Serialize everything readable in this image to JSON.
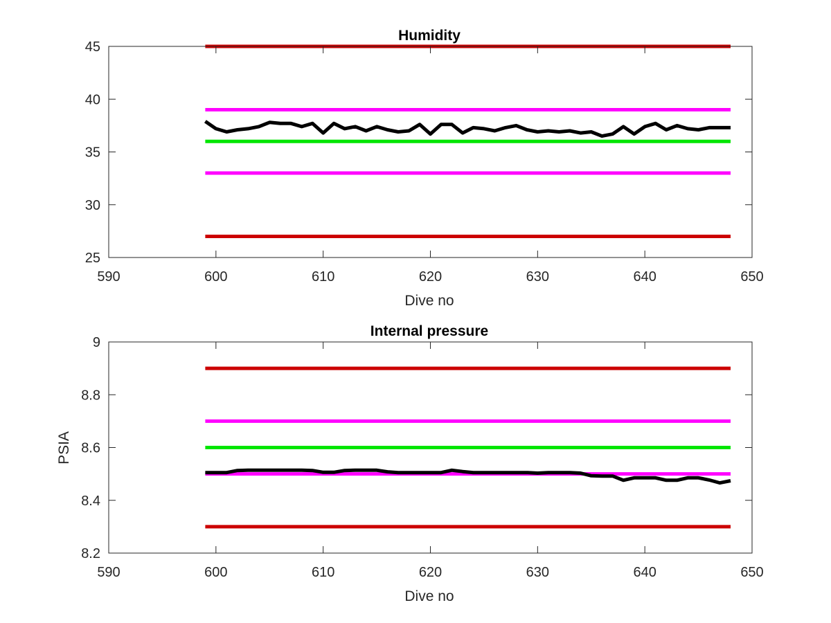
{
  "colors": {
    "limit_red": "#cc0000",
    "limit_magenta": "#ff00ff",
    "target_green": "#00e600",
    "data_black": "#000000",
    "axis": "#262626"
  },
  "chart_data": [
    {
      "type": "line",
      "title": "Humidity",
      "xlabel": "Dive no",
      "ylabel": "",
      "xlim": [
        590,
        650
      ],
      "ylim": [
        25,
        45
      ],
      "xticks": [
        "590",
        "600",
        "610",
        "620",
        "630",
        "640",
        "650"
      ],
      "yticks": [
        "25",
        "30",
        "35",
        "40",
        "45"
      ],
      "grid": false,
      "series": [
        {
          "color": "#cc0000",
          "x": [
            599,
            648
          ],
          "y": [
            45,
            45
          ]
        },
        {
          "color": "#ff00ff",
          "x": [
            599,
            648
          ],
          "y": [
            39,
            39
          ]
        },
        {
          "color": "#00e600",
          "x": [
            599,
            648
          ],
          "y": [
            36,
            36
          ]
        },
        {
          "color": "#ff00ff",
          "x": [
            599,
            648
          ],
          "y": [
            33,
            33
          ]
        },
        {
          "color": "#cc0000",
          "x": [
            599,
            648
          ],
          "y": [
            27,
            27
          ]
        },
        {
          "color": "#000000",
          "x": [
            599,
            600,
            601,
            602,
            603,
            604,
            605,
            606,
            607,
            608,
            609,
            610,
            611,
            612,
            613,
            614,
            615,
            616,
            617,
            618,
            619,
            620,
            621,
            622,
            623,
            624,
            625,
            626,
            627,
            628,
            629,
            630,
            631,
            632,
            633,
            634,
            635,
            636,
            637,
            638,
            639,
            640,
            641,
            642,
            643,
            644,
            645,
            646,
            647,
            648
          ],
          "y": [
            37.9,
            37.2,
            36.9,
            37.1,
            37.2,
            37.4,
            37.8,
            37.7,
            37.7,
            37.4,
            37.7,
            36.8,
            37.7,
            37.2,
            37.4,
            37.0,
            37.4,
            37.1,
            36.9,
            37.0,
            37.6,
            36.7,
            37.6,
            37.6,
            36.8,
            37.3,
            37.2,
            37.0,
            37.3,
            37.5,
            37.1,
            36.9,
            37.0,
            36.9,
            37.0,
            36.8,
            36.9,
            36.5,
            36.7,
            37.4,
            36.7,
            37.4,
            37.7,
            37.1,
            37.5,
            37.2,
            37.1,
            37.3,
            37.3,
            37.3
          ]
        }
      ]
    },
    {
      "type": "line",
      "title": "Internal pressure",
      "xlabel": "Dive no",
      "ylabel": "PSIA",
      "xlim": [
        590,
        650
      ],
      "ylim": [
        8.2,
        9.0
      ],
      "xticks": [
        "590",
        "600",
        "610",
        "620",
        "630",
        "640",
        "650"
      ],
      "yticks": [
        "8.2",
        "8.4",
        "8.6",
        "8.8",
        "9"
      ],
      "grid": false,
      "series": [
        {
          "color": "#cc0000",
          "x": [
            599,
            648
          ],
          "y": [
            8.9,
            8.9
          ]
        },
        {
          "color": "#ff00ff",
          "x": [
            599,
            648
          ],
          "y": [
            8.7,
            8.7
          ]
        },
        {
          "color": "#00e600",
          "x": [
            599,
            648
          ],
          "y": [
            8.6,
            8.6
          ]
        },
        {
          "color": "#ff00ff",
          "x": [
            599,
            648
          ],
          "y": [
            8.5,
            8.5
          ]
        },
        {
          "color": "#cc0000",
          "x": [
            599,
            648
          ],
          "y": [
            8.3,
            8.3
          ]
        },
        {
          "color": "#000000",
          "x": [
            599,
            600,
            601,
            602,
            603,
            604,
            605,
            606,
            607,
            608,
            609,
            610,
            611,
            612,
            613,
            614,
            615,
            616,
            617,
            618,
            619,
            620,
            621,
            622,
            623,
            624,
            625,
            626,
            627,
            628,
            629,
            630,
            631,
            632,
            633,
            634,
            635,
            636,
            637,
            638,
            639,
            640,
            641,
            642,
            643,
            644,
            645,
            646,
            647,
            648
          ],
          "y": [
            8.505,
            8.505,
            8.505,
            8.513,
            8.514,
            8.514,
            8.514,
            8.514,
            8.514,
            8.514,
            8.513,
            8.506,
            8.506,
            8.513,
            8.514,
            8.514,
            8.514,
            8.508,
            8.505,
            8.505,
            8.505,
            8.505,
            8.505,
            8.514,
            8.509,
            8.505,
            8.505,
            8.505,
            8.505,
            8.505,
            8.505,
            8.503,
            8.505,
            8.505,
            8.505,
            8.503,
            8.493,
            8.492,
            8.492,
            8.476,
            8.485,
            8.485,
            8.485,
            8.476,
            8.476,
            8.485,
            8.485,
            8.477,
            8.466,
            8.474
          ]
        }
      ]
    }
  ]
}
